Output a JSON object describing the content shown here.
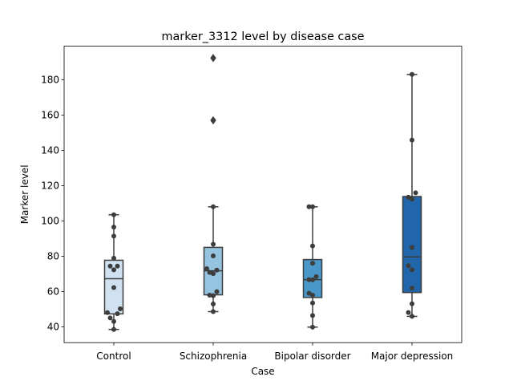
{
  "chart_data": {
    "type": "box",
    "title": "marker_3312 level by disease case",
    "xlabel": "Case",
    "ylabel": "Marker level",
    "ylim": [
      31,
      199
    ],
    "yticks": [
      40,
      60,
      80,
      100,
      120,
      140,
      160,
      180
    ],
    "grid": false,
    "legend": "none",
    "categories": [
      "Control",
      "Schizophrenia",
      "Bipolar disorder",
      "Major depression"
    ],
    "colors": [
      "#d0e1f2",
      "#94c4df",
      "#4a98c9",
      "#2165ab"
    ],
    "boxes": [
      {
        "whisker_low": 38.5,
        "q1": 47.3,
        "median": 67.2,
        "q3": 77.7,
        "whisker_high": 103.5,
        "outliers": []
      },
      {
        "whisker_low": 48.6,
        "q1": 58.1,
        "median": 71.7,
        "q3": 85.0,
        "whisker_high": 108.0,
        "outliers": [
          157.0,
          192.3
        ]
      },
      {
        "whisker_low": 39.8,
        "q1": 56.6,
        "median": 66.7,
        "q3": 78.1,
        "whisker_high": 108.0,
        "outliers": []
      },
      {
        "whisker_low": 45.9,
        "q1": 59.4,
        "median": 79.6,
        "q3": 113.8,
        "whisker_high": 183.0,
        "outliers": []
      }
    ],
    "points": [
      [
        38.5,
        43.0,
        45.0,
        47.4,
        48.0,
        50.2,
        62.2,
        72.3,
        74.4,
        74.4,
        78.9,
        91.4,
        96.5,
        103.5
      ],
      [
        48.6,
        52.9,
        57.6,
        57.9,
        59.9,
        70.1,
        70.8,
        72.1,
        72.9,
        80.2,
        86.8,
        108.0,
        157.0,
        192.3
      ],
      [
        39.8,
        46.4,
        53.5,
        57.9,
        59.0,
        66.6,
        66.7,
        68.4,
        76.0,
        85.8,
        108.0,
        108.0
      ],
      [
        45.9,
        48.1,
        53.0,
        61.9,
        72.3,
        74.6,
        84.9,
        112.3,
        113.4,
        115.9,
        145.8,
        183.0
      ]
    ]
  }
}
